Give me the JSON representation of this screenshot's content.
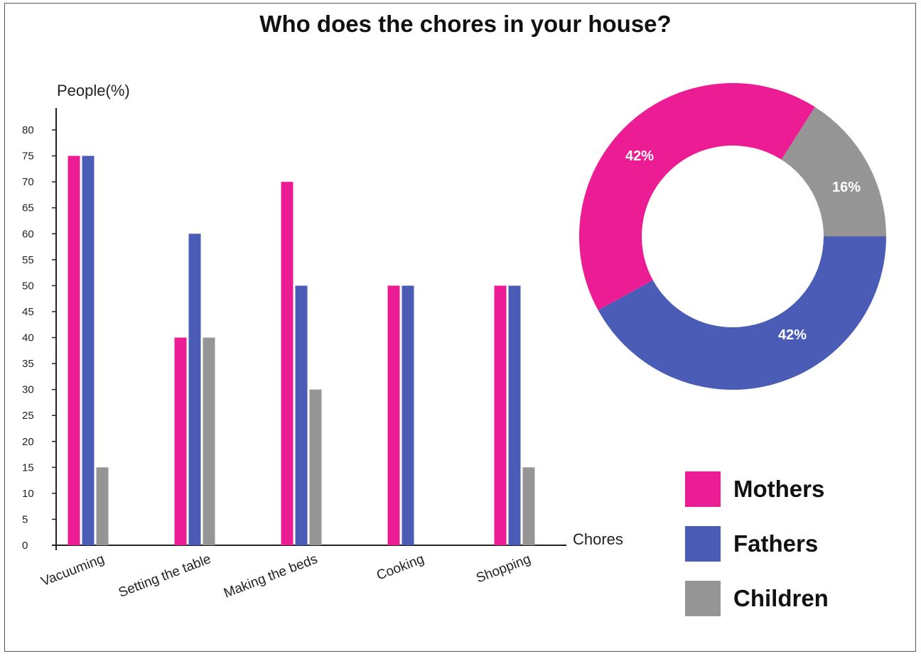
{
  "chart_data": [
    {
      "type": "bar",
      "title": "Who does the chores in your house?",
      "ylabel": "People(%)",
      "xlabel": "Chores",
      "ylim": [
        0,
        80
      ],
      "yticks": [
        0,
        5,
        10,
        15,
        20,
        25,
        30,
        35,
        40,
        45,
        50,
        55,
        60,
        65,
        70,
        75,
        80
      ],
      "categories": [
        "Vacuuming",
        "Setting the table",
        "Making the beds",
        "Cooking",
        "Shopping"
      ],
      "series": [
        {
          "name": "Mothers",
          "color": "#ec1c94",
          "values": [
            75,
            40,
            70,
            50,
            50
          ]
        },
        {
          "name": "Fathers",
          "color": "#4a5cb5",
          "values": [
            75,
            60,
            50,
            50,
            50
          ]
        },
        {
          "name": "Children",
          "color": "#959595",
          "values": [
            15,
            40,
            30,
            0,
            15
          ]
        }
      ],
      "grid": false,
      "legend": "bottom-right"
    },
    {
      "type": "pie",
      "donut": true,
      "slices": [
        {
          "name": "Mothers",
          "label": "42%",
          "value": 42,
          "color": "#ec1c94"
        },
        {
          "name": "Fathers",
          "label": "42%",
          "value": 42,
          "color": "#4a5cb5"
        },
        {
          "name": "Children",
          "label": "16%",
          "value": 16,
          "color": "#959595"
        }
      ],
      "legend": "bottom-right"
    }
  ]
}
